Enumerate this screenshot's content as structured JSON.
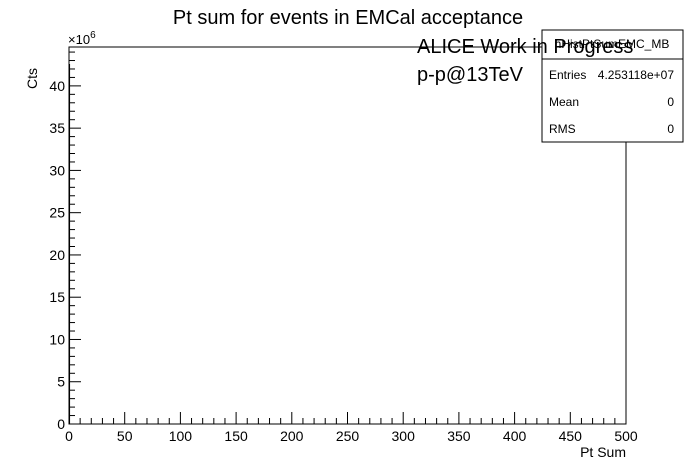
{
  "chart_data": {
    "type": "bar",
    "title": "Pt sum for events in EMCal acceptance",
    "xlabel": "Pt Sum",
    "ylabel": "Cts",
    "y_exponent_label": "×10",
    "y_exponent_power": "6",
    "xlim": [
      0,
      500
    ],
    "ylim": [
      0,
      44.6
    ],
    "x_ticks": [
      0,
      50,
      100,
      150,
      200,
      250,
      300,
      350,
      400,
      450,
      500
    ],
    "y_ticks": [
      0,
      5,
      10,
      15,
      20,
      25,
      30,
      35,
      40
    ],
    "series": [
      {
        "x": [
          0.5
        ],
        "values": [
          42.53118
        ]
      }
    ],
    "annotations": [
      "ALICE Work in Progress",
      "p-p@13TeV"
    ],
    "stats_box": {
      "name": "hHistPtSumEMC_MB",
      "rows": [
        {
          "label": "Entries",
          "value": "4.253118e+07"
        },
        {
          "label": "Mean",
          "value": "0"
        },
        {
          "label": "RMS",
          "value": "0"
        }
      ]
    },
    "grid": false,
    "legend": "top-right"
  }
}
